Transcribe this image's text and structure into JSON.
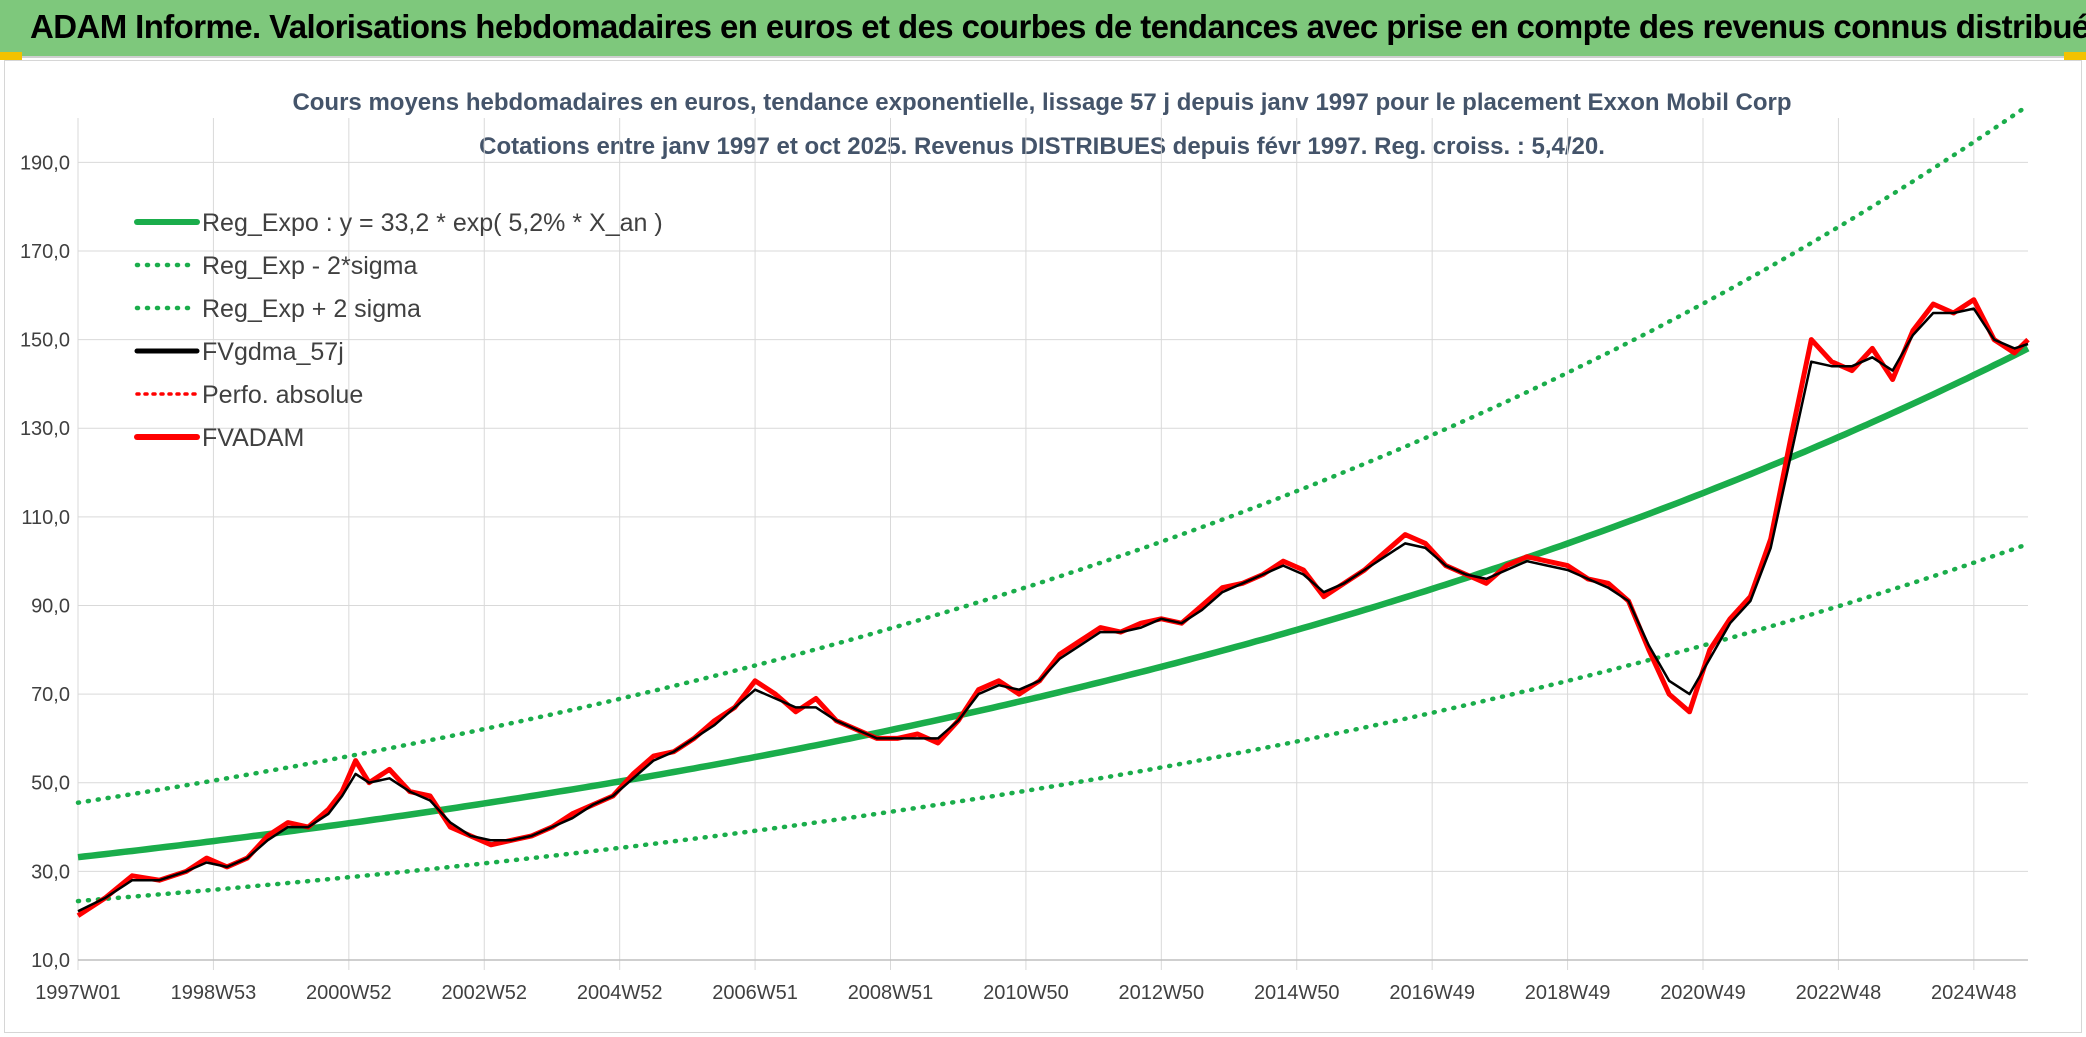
{
  "banner": {
    "title": "ADAM Informe. Valorisations hebdomadaires en euros et des courbes de tendances avec prise en compte des revenus connus distribués"
  },
  "colors": {
    "banner_bg": "#7ec87c",
    "reg": "#1aad4b",
    "fv": "#000000",
    "adam": "#ff0000",
    "grid": "#d9d9d9",
    "title": "#44546a"
  },
  "chart_data": {
    "type": "line",
    "title": "Cours moyens hebdomadaires en euros, tendance exponentielle, lissage 57 j depuis janv 1997 pour le placement Exxon Mobil Corp",
    "subtitle": "Cotations entre janv 1997 et oct 2025. Revenus DISTRIBUES depuis févr 1997. Reg. croiss. : 5,4/20.",
    "xlabel": "",
    "ylabel": "",
    "xlim": [
      1997.0,
      2025.8
    ],
    "ylim": [
      10,
      200
    ],
    "y_ticks": [
      10,
      30,
      50,
      70,
      90,
      110,
      130,
      150,
      170,
      190
    ],
    "y_tick_labels": [
      "10,0",
      "30,0",
      "50,0",
      "70,0",
      "90,0",
      "110,0",
      "130,0",
      "150,0",
      "170,0",
      "190,0"
    ],
    "x_ticks": [
      1997.0,
      1999.0,
      2001.0,
      2003.0,
      2005.0,
      2007.0,
      2009.0,
      2011.0,
      2013.0,
      2015.0,
      2017.0,
      2019.0,
      2021.0,
      2023.0,
      2025.0
    ],
    "x_tick_labels": [
      "1997W01",
      "1998W53",
      "2000W52",
      "2002W52",
      "2004W52",
      "2006W51",
      "2008W51",
      "2010W50",
      "2012W50",
      "2014W50",
      "2016W49",
      "2018W49",
      "2020W49",
      "2022W48",
      "2024W48"
    ],
    "grid": true,
    "legend_position": "top-left",
    "legend": [
      {
        "label": "Reg_Expo : y = 33,2 * exp( 5,2% *  X_an )",
        "style": "solid",
        "color": "#1aad4b"
      },
      {
        "label": "Reg_Exp - 2*sigma",
        "style": "dotted",
        "color": "#1aad4b"
      },
      {
        "label": "Reg_Exp + 2 sigma",
        "style": "dotted",
        "color": "#1aad4b"
      },
      {
        "label": "FVgdma_57j",
        "style": "solid",
        "color": "#000000"
      },
      {
        "label": "Perfo. absolue",
        "style": "dotted",
        "color": "#ff0000"
      },
      {
        "label": "FVADAM",
        "style": "solid",
        "color": "#ff0000"
      }
    ],
    "series": [
      {
        "name": "Reg_Expo",
        "formula": "33.2*exp(0.052*(x-1997))",
        "x": [
          1997.0,
          2025.8
        ],
        "values": [
          33.2,
          148.0
        ]
      },
      {
        "name": "Reg_Exp - 2*sigma",
        "formula": "0.702*Reg_Expo",
        "x": [
          1997.0,
          2025.8
        ],
        "values": [
          23.3,
          104.0
        ]
      },
      {
        "name": "Reg_Exp + 2 sigma",
        "formula": "1.37*Reg_Expo",
        "x": [
          1997.0,
          2025.8
        ],
        "values": [
          45.5,
          202.0
        ]
      },
      {
        "name": "FVADAM",
        "x": [
          1997.0,
          1997.4,
          1997.8,
          1998.2,
          1998.6,
          1998.9,
          1999.2,
          1999.5,
          1999.8,
          2000.1,
          2000.4,
          2000.7,
          2000.9,
          2001.1,
          2001.3,
          2001.6,
          2001.9,
          2002.2,
          2002.5,
          2002.8,
          2003.1,
          2003.4,
          2003.7,
          2004.0,
          2004.3,
          2004.6,
          2004.9,
          2005.2,
          2005.5,
          2005.8,
          2006.1,
          2006.4,
          2006.7,
          2007.0,
          2007.3,
          2007.6,
          2007.9,
          2008.2,
          2008.5,
          2008.8,
          2009.1,
          2009.4,
          2009.7,
          2010.0,
          2010.3,
          2010.6,
          2010.9,
          2011.2,
          2011.5,
          2011.8,
          2012.1,
          2012.4,
          2012.7,
          2013.0,
          2013.3,
          2013.6,
          2013.9,
          2014.2,
          2014.5,
          2014.8,
          2015.1,
          2015.4,
          2015.7,
          2016.0,
          2016.3,
          2016.6,
          2016.9,
          2017.2,
          2017.5,
          2017.8,
          2018.1,
          2018.4,
          2018.7,
          2019.0,
          2019.3,
          2019.6,
          2019.9,
          2020.2,
          2020.5,
          2020.8,
          2021.1,
          2021.4,
          2021.7,
          2022.0,
          2022.3,
          2022.6,
          2022.9,
          2023.2,
          2023.5,
          2023.8,
          2024.1,
          2024.4,
          2024.7,
          2025.0,
          2025.3,
          2025.6,
          2025.8
        ],
        "values": [
          20,
          24,
          29,
          28,
          30,
          33,
          31,
          33,
          38,
          41,
          40,
          44,
          48,
          55,
          50,
          53,
          48,
          47,
          40,
          38,
          36,
          37,
          38,
          40,
          43,
          45,
          47,
          52,
          56,
          57,
          60,
          64,
          67,
          73,
          70,
          66,
          69,
          64,
          62,
          60,
          60,
          61,
          59,
          64,
          71,
          73,
          70,
          73,
          79,
          82,
          85,
          84,
          86,
          87,
          86,
          90,
          94,
          95,
          97,
          100,
          98,
          92,
          95,
          98,
          102,
          106,
          104,
          99,
          97,
          95,
          99,
          101,
          100,
          99,
          96,
          95,
          91,
          80,
          70,
          66,
          80,
          87,
          92,
          105,
          128,
          150,
          145,
          143,
          148,
          141,
          152,
          158,
          156,
          159,
          150,
          147,
          150
        ]
      },
      {
        "name": "FVgdma_57j",
        "x": [
          1997.0,
          1997.4,
          1997.8,
          1998.2,
          1998.6,
          1998.9,
          1999.2,
          1999.5,
          1999.8,
          2000.1,
          2000.4,
          2000.7,
          2000.9,
          2001.1,
          2001.3,
          2001.6,
          2001.9,
          2002.2,
          2002.5,
          2002.8,
          2003.1,
          2003.4,
          2003.7,
          2004.0,
          2004.3,
          2004.6,
          2004.9,
          2005.2,
          2005.5,
          2005.8,
          2006.1,
          2006.4,
          2006.7,
          2007.0,
          2007.3,
          2007.6,
          2007.9,
          2008.2,
          2008.5,
          2008.8,
          2009.1,
          2009.4,
          2009.7,
          2010.0,
          2010.3,
          2010.6,
          2010.9,
          2011.2,
          2011.5,
          2011.8,
          2012.1,
          2012.4,
          2012.7,
          2013.0,
          2013.3,
          2013.6,
          2013.9,
          2014.2,
          2014.5,
          2014.8,
          2015.1,
          2015.4,
          2015.7,
          2016.0,
          2016.3,
          2016.6,
          2016.9,
          2017.2,
          2017.5,
          2017.8,
          2018.1,
          2018.4,
          2018.7,
          2019.0,
          2019.3,
          2019.6,
          2019.9,
          2020.2,
          2020.5,
          2020.8,
          2021.1,
          2021.4,
          2021.7,
          2022.0,
          2022.3,
          2022.6,
          2022.9,
          2023.2,
          2023.5,
          2023.8,
          2024.1,
          2024.4,
          2024.7,
          2025.0,
          2025.3,
          2025.6,
          2025.8
        ],
        "values": [
          21,
          24,
          28,
          28,
          30,
          32,
          31,
          33,
          37,
          40,
          40,
          43,
          47,
          52,
          50,
          51,
          48,
          46,
          41,
          38,
          37,
          37,
          38,
          40,
          42,
          45,
          47,
          51,
          55,
          57,
          60,
          63,
          67,
          71,
          69,
          67,
          67,
          64,
          62,
          60,
          60,
          60,
          60,
          64,
          70,
          72,
          71,
          73,
          78,
          81,
          84,
          84,
          85,
          87,
          86,
          89,
          93,
          95,
          97,
          99,
          97,
          93,
          95,
          98,
          101,
          104,
          103,
          99,
          97,
          96,
          98,
          100,
          99,
          98,
          96,
          94,
          91,
          81,
          73,
          70,
          78,
          86,
          91,
          103,
          124,
          145,
          144,
          144,
          146,
          143,
          151,
          156,
          156,
          157,
          150,
          148,
          149
        ]
      }
    ]
  }
}
